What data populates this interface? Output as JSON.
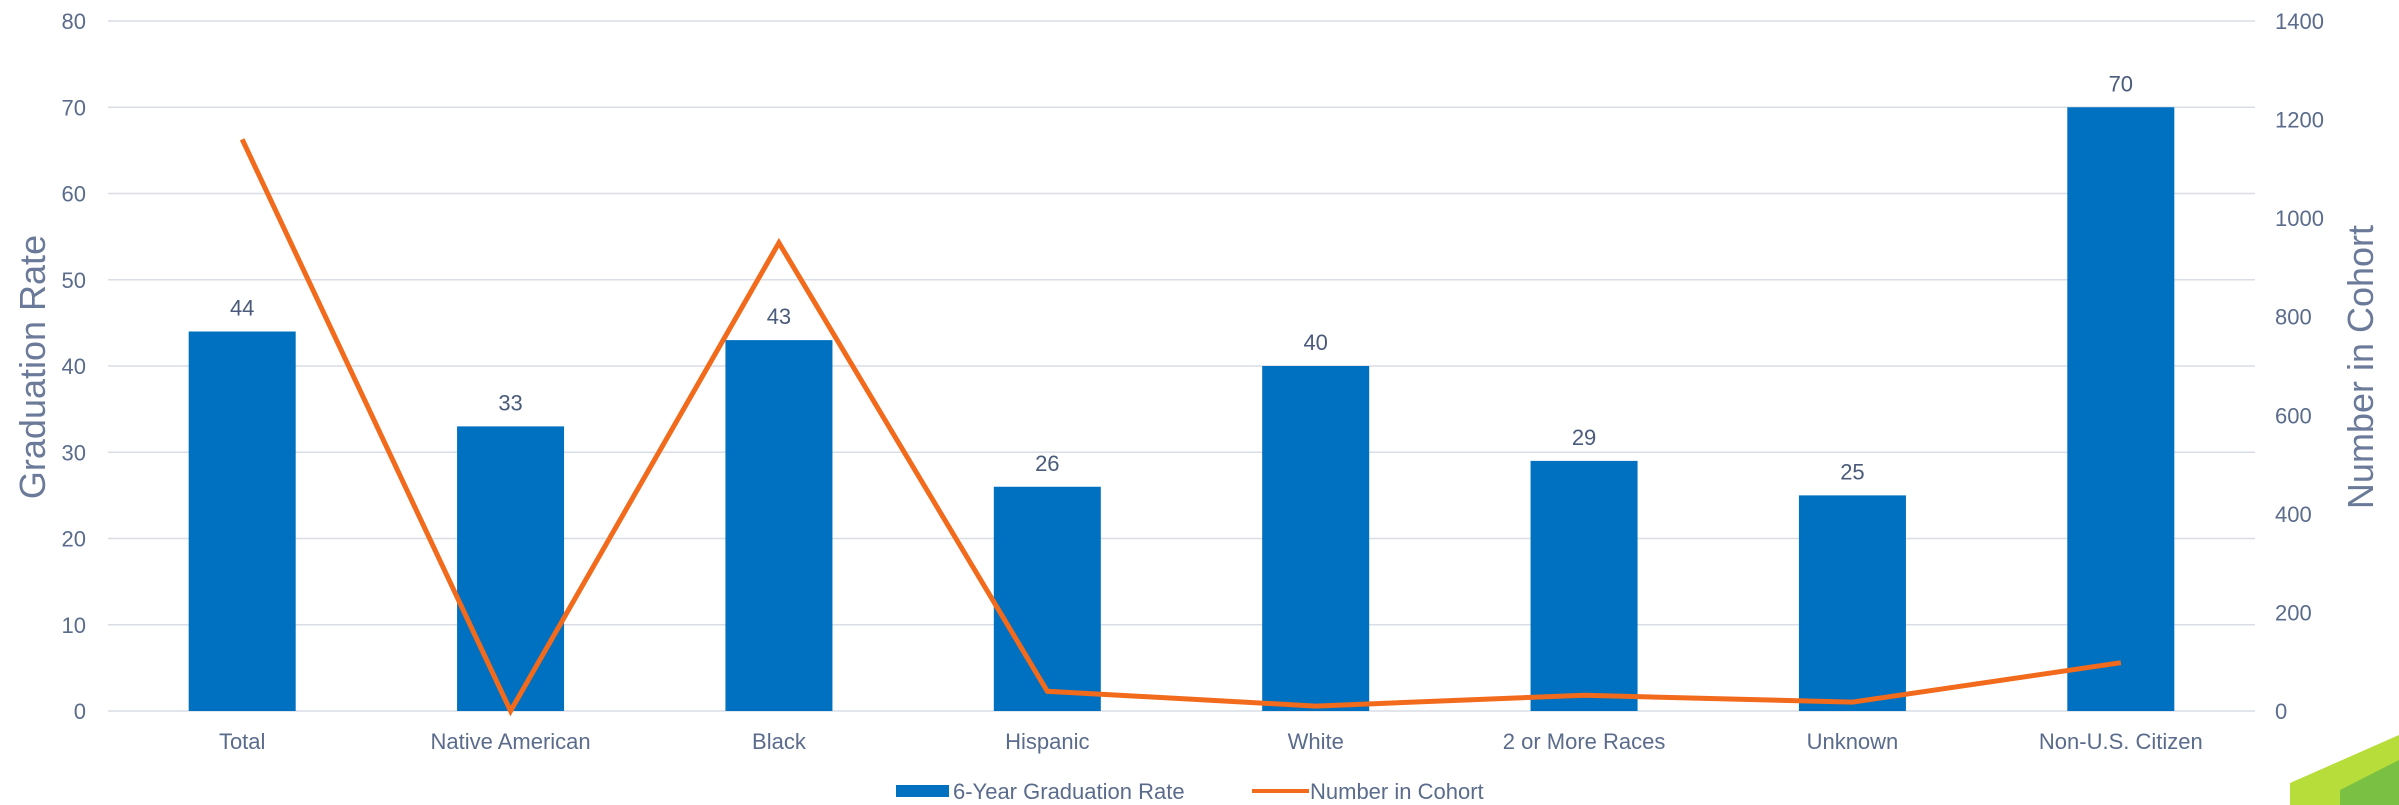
{
  "chart_data": {
    "type": "bar",
    "categories": [
      "Total",
      "Native American",
      "Black",
      "Hispanic",
      "White",
      "2 or More Races",
      "Unknown",
      "Non-U.S. Citizen"
    ],
    "series": [
      {
        "name": "6-Year Graduation Rate",
        "type": "bar",
        "axis": "left",
        "values": [
          44,
          33,
          43,
          26,
          40,
          29,
          25,
          70
        ],
        "color": "#0070c0"
      },
      {
        "name": "Number in Cohort",
        "type": "line",
        "axis": "right",
        "values": [
          1160,
          0,
          950,
          40,
          10,
          32,
          18,
          98
        ],
        "color": "#f26a1b"
      }
    ],
    "ylabel": "Graduation Rate",
    "y2label": "Number in Cohort",
    "ylim": [
      0,
      80
    ],
    "y2lim": [
      0,
      1400
    ],
    "yticks": [
      "0",
      "10",
      "20",
      "30",
      "40",
      "50",
      "60",
      "70",
      "80"
    ],
    "y2ticks": [
      "0",
      "200",
      "400",
      "600",
      "800",
      "1000",
      "1200",
      "1400"
    ],
    "data_labels": [
      "44",
      "33",
      "43",
      "26",
      "40",
      "29",
      "25",
      "70"
    ],
    "grid": true,
    "legend": "bottom"
  },
  "colors": {
    "grid": "#d9dde6",
    "decor_dark": "#7ac143",
    "decor_light": "#b6dd3a"
  }
}
